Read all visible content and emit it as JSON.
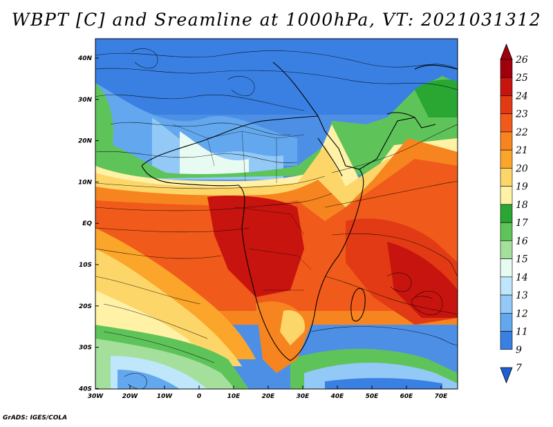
{
  "title": "WBPT [C] and Sreamline at 1000hPa, VT: 2021031312",
  "footer": "GrADS: IGES/COLA",
  "map": {
    "lon_ticks": [
      "30W",
      "20W",
      "10W",
      "0",
      "10E",
      "20E",
      "30E",
      "40E",
      "50E",
      "60E",
      "70E"
    ],
    "lat_ticks": [
      "40N",
      "30N",
      "20N",
      "10N",
      "EQ",
      "10S",
      "20S",
      "30S",
      "40S"
    ]
  },
  "colorbar": {
    "levels": [
      "26",
      "25",
      "24",
      "23",
      "22",
      "21",
      "20",
      "19",
      "18",
      "17",
      "16",
      "15",
      "14",
      "13",
      "12",
      "11",
      "9",
      "7"
    ],
    "colors": [
      "#a0000c",
      "#c8140e",
      "#e23a14",
      "#f05a1a",
      "#f7851f",
      "#fba62a",
      "#fdd66a",
      "#fff1a6",
      "#2aa632",
      "#5ec45a",
      "#a4e09c",
      "#e8fbf3",
      "#bfe6fb",
      "#93c9f6",
      "#63a8ee",
      "#3a80e2",
      "#1e60d4"
    ]
  },
  "colors": {
    "land_outline": "#000000",
    "streamline": "#000000"
  }
}
